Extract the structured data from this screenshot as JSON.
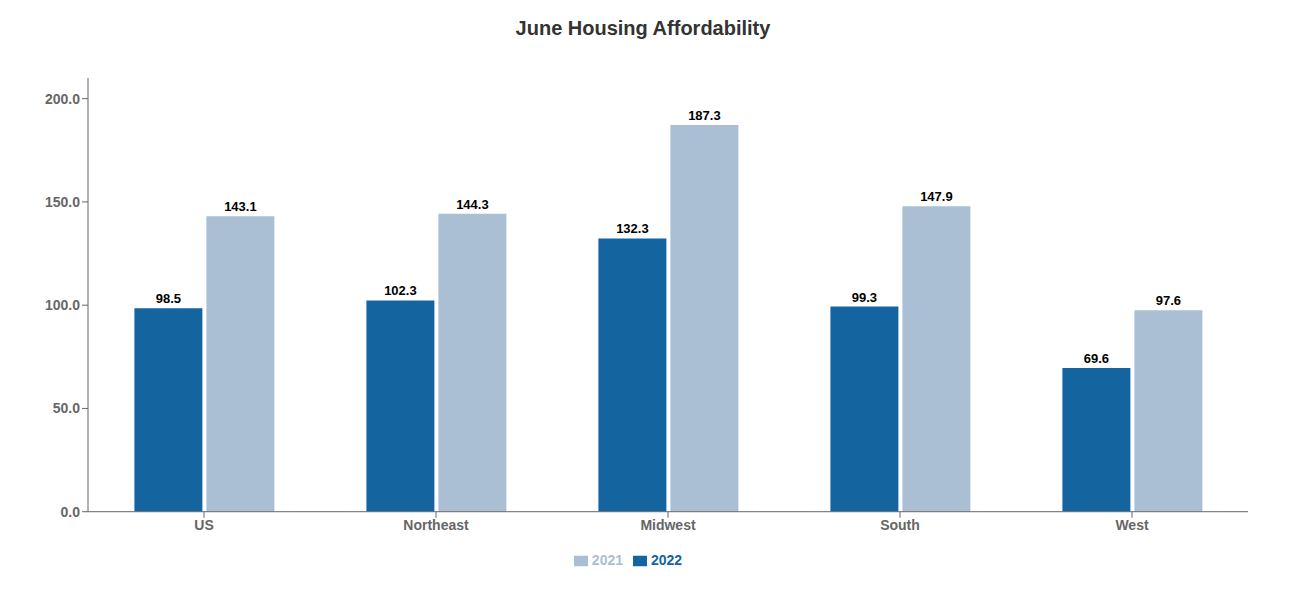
{
  "chart_data": {
    "type": "bar",
    "title": "June Housing Affordability",
    "categories": [
      "US",
      "Northeast",
      "Midwest",
      "South",
      "West"
    ],
    "series": [
      {
        "name": "2022",
        "color": "#1464A0",
        "values": [
          98.5,
          102.3,
          132.3,
          99.3,
          69.6
        ]
      },
      {
        "name": "2021",
        "color": "#AABFD4",
        "values": [
          143.1,
          144.3,
          187.3,
          147.9,
          97.6
        ]
      }
    ],
    "ylim": [
      0,
      210
    ],
    "yticks": [
      {
        "value": 0,
        "label": "0.0"
      },
      {
        "value": 50,
        "label": "50.0"
      },
      {
        "value": 100,
        "label": "100.0"
      },
      {
        "value": 150,
        "label": "150.0"
      },
      {
        "value": 200,
        "label": "200.0"
      }
    ],
    "grid": false,
    "legend": "bottom",
    "data_labels": true
  }
}
